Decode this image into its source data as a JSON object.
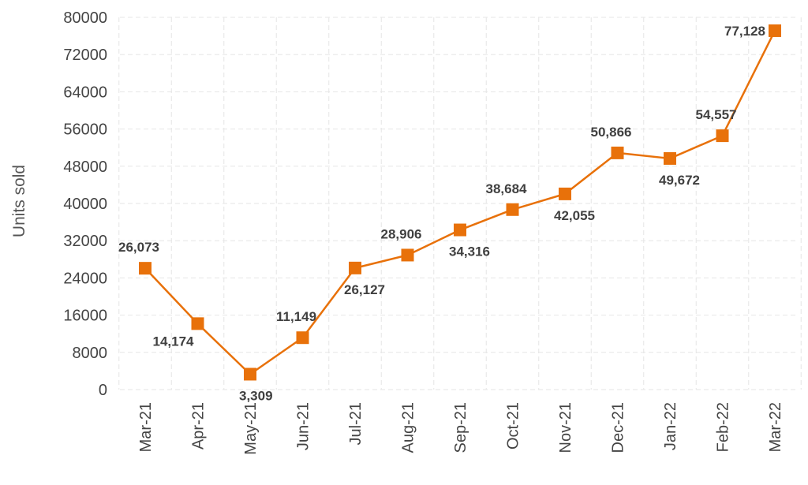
{
  "chart_data": {
    "type": "line",
    "title": "",
    "xlabel": "",
    "ylabel": "Units sold",
    "categories": [
      "Mar-21",
      "Apr-21",
      "May-21",
      "Jun-21",
      "Jul-21",
      "Aug-21",
      "Sep-21",
      "Oct-21",
      "Nov-21",
      "Dec-21",
      "Jan-22",
      "Feb-22",
      "Mar-22"
    ],
    "values": [
      26073,
      14174,
      3309,
      11149,
      26127,
      28906,
      34316,
      38684,
      42055,
      50866,
      49672,
      54557,
      77128
    ],
    "data_labels": [
      "26,073",
      "14,174",
      "3,309",
      "11,149",
      "26,127",
      "28,906",
      "34,316",
      "38,684",
      "42,055",
      "50,866",
      "49,672",
      "54,557",
      "77,128"
    ],
    "ylim": [
      0,
      80000
    ],
    "yticks": [
      0,
      8000,
      16000,
      24000,
      32000,
      40000,
      48000,
      56000,
      64000,
      72000,
      80000
    ],
    "ytick_labels": [
      "0",
      "8000",
      "16000",
      "24000",
      "32000",
      "40000",
      "48000",
      "56000",
      "64000",
      "72000",
      "80000"
    ],
    "grid": true,
    "marker": "square",
    "color": "#E8710A"
  }
}
